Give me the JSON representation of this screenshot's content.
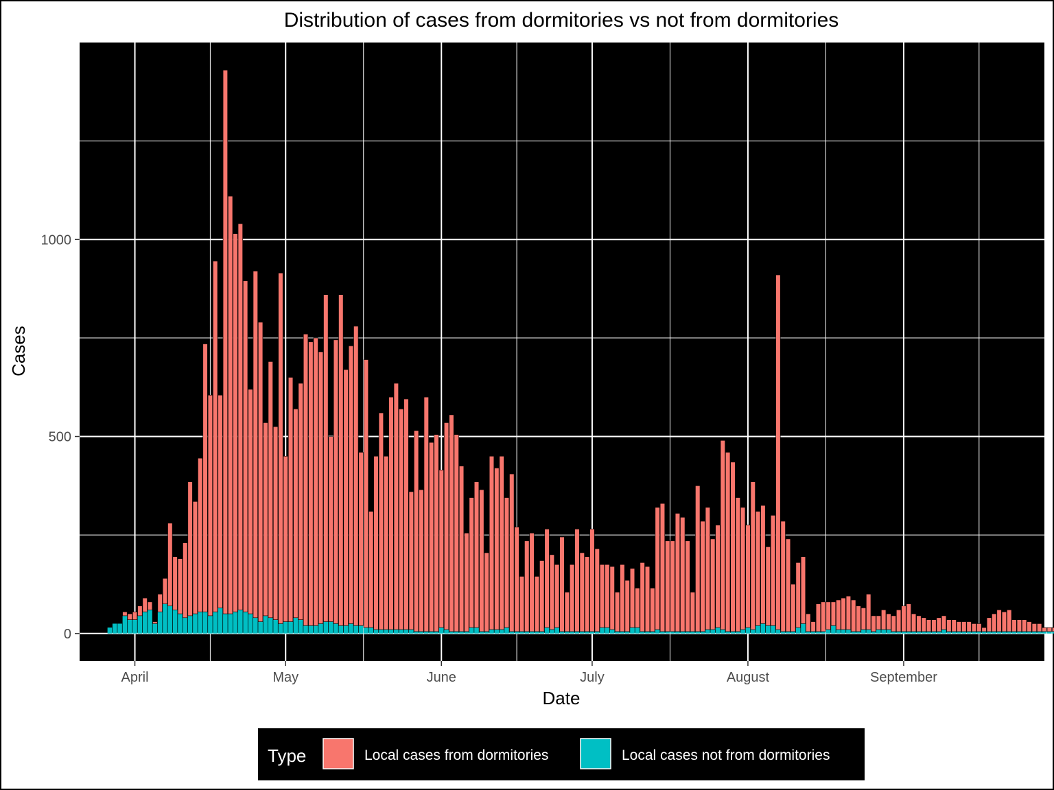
{
  "chart_data": {
    "type": "bar",
    "stacked": true,
    "title": "Distribution of cases from dormitories vs not from dormitories",
    "xlabel": "Date",
    "ylabel": "Cases",
    "x_tick_labels": [
      "April",
      "May",
      "June",
      "July",
      "August",
      "September"
    ],
    "y_ticks": [
      0,
      500,
      1000
    ],
    "ylim": [
      -70,
      1500
    ],
    "x_start": "2020-03-27",
    "x_range": [
      "2020-03-21",
      "2020-09-29"
    ],
    "grid": true,
    "legend": {
      "title": "Type",
      "position": "bottom",
      "entries": [
        "Local cases from dormitories",
        "Local cases not from dormitories"
      ]
    },
    "colors": {
      "Local cases from dormitories": "#F8766D",
      "Local cases not from dormitories": "#00BFC4",
      "panel": "#000000",
      "grid": "#ffffff"
    },
    "series": [
      {
        "name": "Local cases not from dormitories",
        "values": [
          15,
          25,
          25,
          45,
          35,
          35,
          45,
          55,
          60,
          25,
          55,
          75,
          70,
          60,
          50,
          40,
          45,
          50,
          55,
          55,
          45,
          55,
          65,
          50,
          50,
          55,
          60,
          55,
          50,
          40,
          30,
          45,
          40,
          35,
          25,
          30,
          30,
          40,
          35,
          20,
          20,
          20,
          25,
          30,
          30,
          25,
          20,
          20,
          25,
          20,
          20,
          15,
          15,
          10,
          10,
          10,
          10,
          10,
          10,
          10,
          10,
          5,
          5,
          5,
          5,
          5,
          15,
          10,
          5,
          5,
          5,
          5,
          15,
          15,
          5,
          5,
          10,
          10,
          10,
          15,
          5,
          5,
          5,
          5,
          5,
          5,
          5,
          15,
          10,
          15,
          5,
          5,
          5,
          5,
          5,
          5,
          5,
          5,
          15,
          15,
          10,
          5,
          5,
          5,
          15,
          15,
          5,
          5,
          5,
          10,
          5,
          5,
          5,
          5,
          5,
          5,
          5,
          5,
          5,
          10,
          10,
          15,
          10,
          5,
          5,
          5,
          10,
          15,
          10,
          20,
          25,
          20,
          20,
          10,
          5,
          5,
          5,
          15,
          25,
          5,
          5,
          5,
          5,
          10,
          20,
          10,
          10,
          10,
          5,
          5,
          10,
          10,
          5,
          10,
          10,
          10,
          5,
          5,
          5,
          5,
          5,
          5,
          5,
          5,
          5,
          5,
          10,
          5,
          5,
          5,
          5,
          5,
          5,
          5,
          5,
          5,
          5,
          5,
          5,
          5,
          5,
          5,
          5,
          5,
          5,
          5,
          5,
          5,
          5,
          5,
          5,
          5,
          5,
          5,
          5,
          5,
          5,
          5,
          5,
          5,
          5,
          5,
          5,
          5,
          5,
          5,
          5,
          5,
          5,
          5,
          5,
          5,
          5,
          5,
          5,
          5,
          5,
          5,
          5,
          5
        ]
      },
      {
        "name": "Local cases from dormitories",
        "values": [
          0,
          0,
          0,
          10,
          15,
          20,
          25,
          35,
          20,
          5,
          45,
          65,
          210,
          135,
          140,
          190,
          340,
          285,
          390,
          680,
          560,
          890,
          540,
          1380,
          1060,
          960,
          980,
          840,
          570,
          880,
          760,
          490,
          650,
          490,
          890,
          420,
          620,
          530,
          600,
          740,
          720,
          730,
          690,
          830,
          470,
          720,
          840,
          650,
          705,
          760,
          440,
          680,
          295,
          440,
          550,
          440,
          590,
          625,
          560,
          585,
          350,
          510,
          360,
          595,
          480,
          500,
          400,
          525,
          550,
          500,
          420,
          250,
          330,
          370,
          360,
          200,
          440,
          410,
          440,
          330,
          400,
          265,
          140,
          230,
          250,
          140,
          180,
          250,
          190,
          160,
          240,
          100,
          170,
          260,
          200,
          190,
          260,
          210,
          160,
          160,
          160,
          100,
          170,
          130,
          150,
          100,
          175,
          165,
          110,
          310,
          325,
          230,
          230,
          300,
          290,
          230,
          100,
          370,
          280,
          310,
          230,
          260,
          480,
          455,
          430,
          340,
          310,
          260,
          375,
          290,
          300,
          200,
          280,
          900,
          280,
          235,
          120,
          165,
          170,
          45,
          25,
          70,
          75,
          70,
          60,
          75,
          80,
          85,
          80,
          65,
          55,
          90,
          40,
          35,
          50,
          40,
          40,
          55,
          65,
          70,
          45,
          40,
          35,
          30,
          30,
          35,
          35,
          30,
          30,
          25,
          25,
          25,
          20,
          20,
          10,
          35,
          45,
          55,
          50,
          55,
          30,
          30,
          30,
          25,
          20,
          20,
          10,
          10,
          10,
          10,
          10,
          5,
          5,
          5,
          5,
          5,
          5,
          5,
          5,
          5,
          5,
          5,
          5,
          5,
          5,
          5,
          5,
          5,
          5,
          5,
          5,
          5,
          5,
          5,
          5,
          5
        ]
      }
    ]
  }
}
